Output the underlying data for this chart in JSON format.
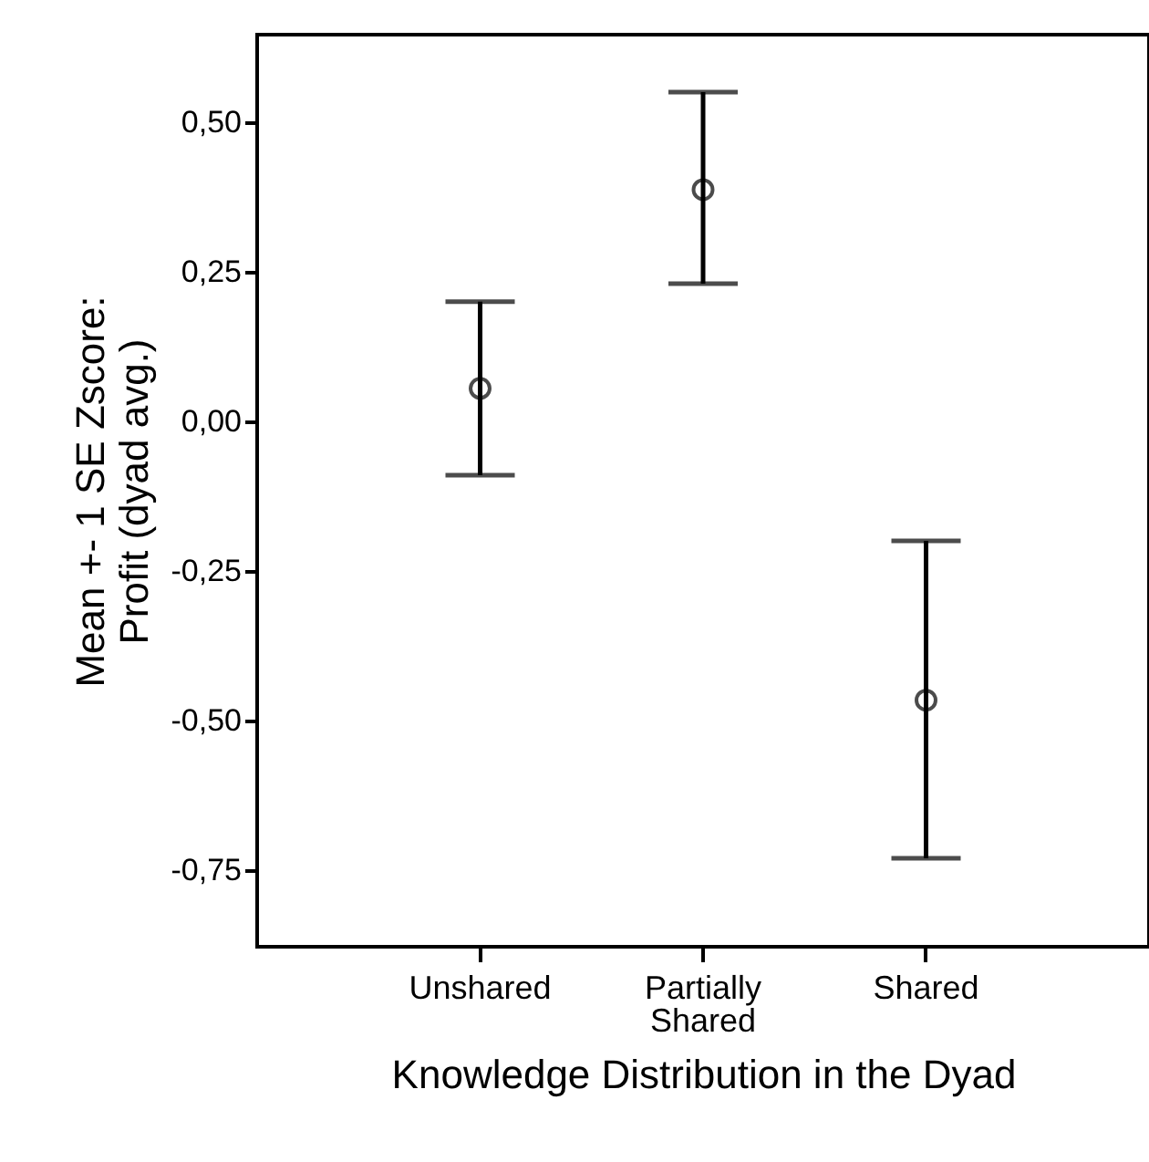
{
  "chart_data": {
    "type": "scatter",
    "xlabel": "Knowledge Distribution in the Dyad",
    "ylabel": "Mean +- 1 SE Zscore:\nProfit (dyad avg.)",
    "categories": [
      "Unshared",
      "Partially Shared",
      "Shared"
    ],
    "series": [
      {
        "color": "#000000",
        "values": [
          0.055,
          0.387,
          -0.466
        ],
        "errors": [
          [
            -0.09,
            0.2
          ],
          [
            0.23,
            0.55
          ],
          [
            -0.73,
            -0.2
          ]
        ]
      }
    ],
    "ylim": [
      -0.878,
      0.646
    ],
    "yticks": [
      {
        "value": 0.5,
        "label": "0,50"
      },
      {
        "value": 0.25,
        "label": "0,25"
      },
      {
        "value": 0,
        "label": "0,00"
      },
      {
        "value": -0.25,
        "label": "-0,25"
      },
      {
        "value": -0.5,
        "label": "-0,50"
      },
      {
        "value": -0.75,
        "label": "-0,75"
      }
    ],
    "marker": "circle",
    "grid": false
  }
}
